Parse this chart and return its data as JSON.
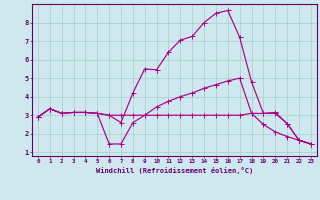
{
  "xlabel": "Windchill (Refroidissement éolien,°C)",
  "bg_color": "#cfe8f0",
  "grid_color": "#a8d4c8",
  "line_color": "#aa0088",
  "axis_color": "#660066",
  "xlim": [
    -0.5,
    23.5
  ],
  "ylim": [
    0.8,
    9.0
  ],
  "xticks": [
    0,
    1,
    2,
    3,
    4,
    5,
    6,
    7,
    8,
    9,
    10,
    11,
    12,
    13,
    14,
    15,
    16,
    17,
    18,
    19,
    20,
    21,
    22,
    23
  ],
  "yticks": [
    1,
    2,
    3,
    4,
    5,
    6,
    7,
    8
  ],
  "line1_x": [
    0,
    1,
    2,
    3,
    4,
    5,
    6,
    7,
    8,
    9,
    10,
    11,
    12,
    13,
    14,
    15,
    16,
    17,
    18,
    19,
    20,
    21,
    22,
    23
  ],
  "line1_y": [
    2.9,
    3.35,
    3.1,
    3.15,
    3.15,
    3.1,
    3.0,
    2.6,
    4.2,
    5.5,
    5.45,
    6.4,
    7.05,
    7.25,
    8.0,
    8.5,
    8.65,
    7.2,
    4.8,
    3.1,
    3.15,
    2.55,
    1.65,
    1.45
  ],
  "line2_x": [
    0,
    1,
    2,
    3,
    4,
    5,
    6,
    7,
    8,
    9,
    10,
    11,
    12,
    13,
    14,
    15,
    16,
    17,
    18,
    19,
    20,
    21,
    22,
    23
  ],
  "line2_y": [
    2.9,
    3.35,
    3.1,
    3.15,
    3.15,
    3.1,
    1.45,
    1.45,
    2.6,
    3.0,
    3.45,
    3.75,
    4.0,
    4.2,
    4.45,
    4.65,
    4.85,
    5.0,
    3.1,
    2.5,
    2.1,
    1.85,
    1.65,
    1.45
  ],
  "line3_x": [
    0,
    1,
    2,
    3,
    4,
    5,
    6,
    7,
    8,
    9,
    10,
    11,
    12,
    13,
    14,
    15,
    16,
    17,
    18,
    19,
    20,
    21,
    22,
    23
  ],
  "line3_y": [
    2.9,
    3.35,
    3.1,
    3.15,
    3.15,
    3.1,
    3.0,
    3.0,
    3.0,
    3.0,
    3.0,
    3.0,
    3.0,
    3.0,
    3.0,
    3.0,
    3.0,
    3.0,
    3.1,
    3.1,
    3.1,
    2.55,
    1.65,
    1.45
  ]
}
